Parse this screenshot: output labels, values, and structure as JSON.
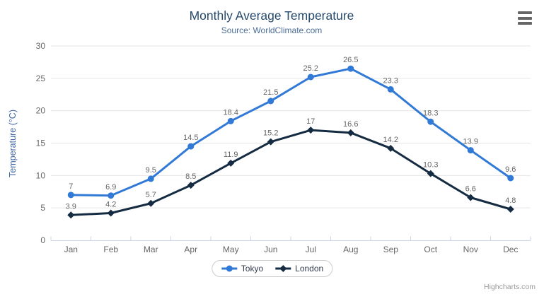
{
  "chart_data": {
    "type": "line",
    "title": "Monthly Average Temperature",
    "subtitle": "Source: WorldClimate.com",
    "xlabel": "",
    "ylabel": "Temperature (°C)",
    "categories": [
      "Jan",
      "Feb",
      "Mar",
      "Apr",
      "May",
      "Jun",
      "Jul",
      "Aug",
      "Sep",
      "Oct",
      "Nov",
      "Dec"
    ],
    "series": [
      {
        "name": "Tokyo",
        "marker": "circle",
        "color": "#3079d6",
        "values": [
          7,
          6.9,
          9.5,
          14.5,
          18.4,
          21.5,
          25.2,
          26.5,
          23.3,
          18.3,
          13.9,
          9.6
        ]
      },
      {
        "name": "London",
        "marker": "diamond",
        "color": "#152b41",
        "values": [
          3.9,
          4.2,
          5.7,
          8.5,
          11.9,
          15.2,
          17,
          16.6,
          14.2,
          10.3,
          6.6,
          4.8
        ]
      }
    ],
    "ylim": [
      0,
      30
    ],
    "ytick_step": 5,
    "grid": true,
    "legend_position": "bottom",
    "data_labels": true
  },
  "colors": {
    "title": "#274b6d",
    "subtitle": "#4a6d96",
    "yaxis_title": "#4066a5",
    "tick_label": "#666666",
    "data_label": "#666666",
    "gridline": "#e6e6e6",
    "axis_line": "#ccd6eb",
    "legend_text": "#333c4e",
    "menu_icon": "#666666",
    "credits_text": "#999999"
  },
  "menu": {
    "icon": "hamburger-icon"
  },
  "credits": {
    "label": "Highcharts.com"
  }
}
